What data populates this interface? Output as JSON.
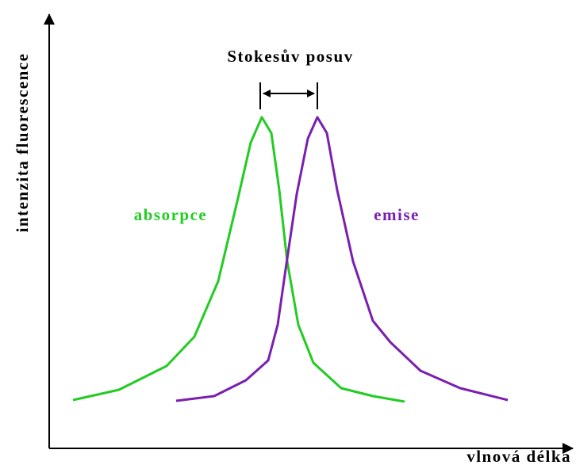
{
  "y_axis_label": "intenzita fluorescence",
  "x_axis_label": "vlnová délka",
  "shift_label": "Stokesův posuv",
  "curves": [
    {
      "label": "absorpce"
    },
    {
      "label": "emise"
    }
  ]
}
